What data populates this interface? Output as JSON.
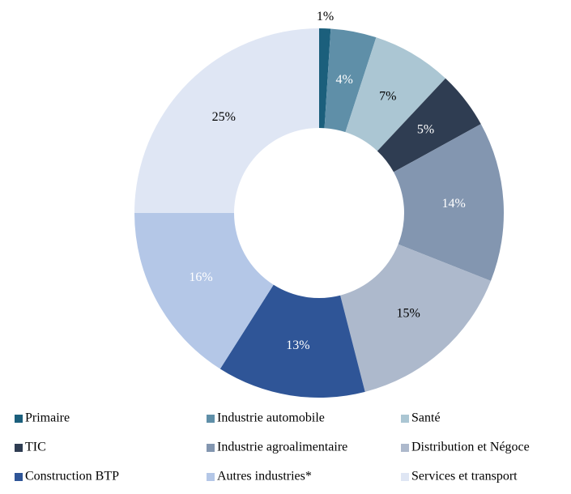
{
  "chart_data": {
    "type": "donut",
    "categories": [
      "Primaire",
      "Industrie automobile",
      "Santé",
      "TIC",
      "Industrie agroalimentaire",
      "Distribution et Négoce",
      "Construction BTP",
      "Autres industries*",
      "Services et transport"
    ],
    "values": [
      1,
      4,
      7,
      5,
      14,
      15,
      13,
      16,
      25
    ],
    "value_labels": [
      "1%",
      "4%",
      "7%",
      "5%",
      "14%",
      "15%",
      "13%",
      "16%",
      "25%"
    ],
    "colors": [
      "#1b5f7c",
      "#5f8fa8",
      "#abc6d3",
      "#2f3d52",
      "#8396b0",
      "#adb9cc",
      "#2f5597",
      "#b4c7e7",
      "#dfe6f4"
    ],
    "label_colors": [
      "#000000",
      "#ffffff",
      "#000000",
      "#ffffff",
      "#ffffff",
      "#000000",
      "#ffffff",
      "#ffffff",
      "#000000"
    ],
    "legend": "bottom"
  }
}
